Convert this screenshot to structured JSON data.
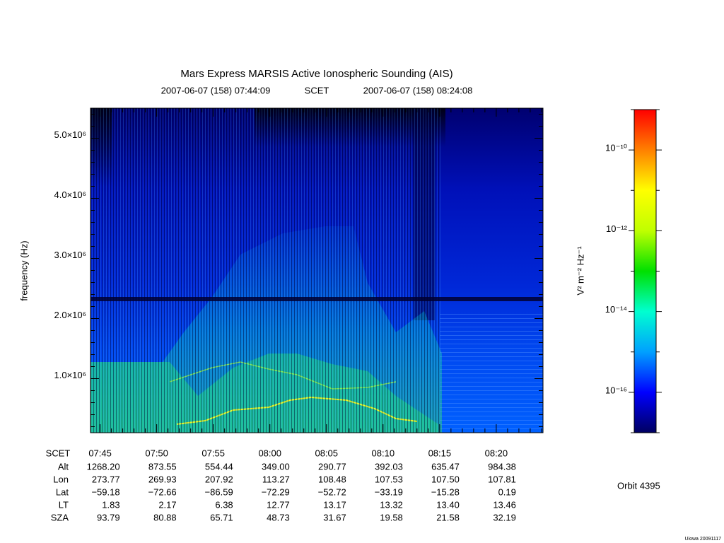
{
  "chart_data": {
    "type": "spectrogram",
    "title": "Mars Express MARSIS Active Ionospheric Sounding (AIS)",
    "start_time": "2007-06-07 (158) 07:44:09",
    "time_system": "SCET",
    "end_time": "2007-06-07 (158) 08:24:08",
    "ylabel": "frequency (Hz)",
    "ylim": [
      100000,
      5500000
    ],
    "yticks": [
      {
        "value": 1000000,
        "label": "1.0×10⁶"
      },
      {
        "value": 2000000,
        "label": "2.0×10⁶"
      },
      {
        "value": 3000000,
        "label": "3.0×10⁶"
      },
      {
        "value": 4000000,
        "label": "4.0×10⁶"
      },
      {
        "value": 5000000,
        "label": "5.0×10⁶"
      }
    ],
    "yminorticks": [
      200000,
      400000,
      600000,
      800000,
      1200000,
      1400000,
      1600000,
      1800000,
      2200000,
      2400000,
      2600000,
      2800000,
      3200000,
      3400000,
      3600000,
      3800000,
      4200000,
      4400000,
      4600000,
      4800000,
      5200000,
      5400000
    ],
    "xlim": [
      464.15,
      504.13
    ],
    "xticks": [
      {
        "value": 465,
        "label": "07:45"
      },
      {
        "value": 470,
        "label": "07:50"
      },
      {
        "value": 475,
        "label": "07:55"
      },
      {
        "value": 480,
        "label": "08:00"
      },
      {
        "value": 485,
        "label": "08:05"
      },
      {
        "value": 490,
        "label": "08:10"
      },
      {
        "value": 495,
        "label": "08:15"
      },
      {
        "value": 500,
        "label": "08:20"
      }
    ],
    "xminorticks": [
      466,
      467,
      468,
      469,
      471,
      472,
      473,
      474,
      476,
      477,
      478,
      479,
      481,
      482,
      483,
      484,
      486,
      487,
      488,
      489,
      491,
      492,
      493,
      494,
      496,
      497,
      498,
      499,
      501,
      502,
      503,
      504
    ],
    "ephemeris": {
      "time_label": "SCET",
      "rows": [
        {
          "label": "Alt",
          "values": [
            "1268.20",
            "873.55",
            "554.44",
            "349.00",
            "290.77",
            "392.03",
            "635.47",
            "984.38"
          ]
        },
        {
          "label": "Lon",
          "values": [
            "273.77",
            "269.93",
            "207.92",
            "113.27",
            "108.48",
            "107.53",
            "107.50",
            "107.81"
          ]
        },
        {
          "label": "Lat",
          "values": [
            "−59.18",
            "−72.66",
            "−86.59",
            "−72.29",
            "−52.72",
            "−33.19",
            "−15.28",
            "0.19"
          ]
        },
        {
          "label": "LT",
          "values": [
            "1.83",
            "2.17",
            "6.38",
            "12.77",
            "13.17",
            "13.32",
            "13.40",
            "13.46"
          ]
        },
        {
          "label": "SZA",
          "values": [
            "93.79",
            "80.88",
            "65.71",
            "48.73",
            "31.67",
            "19.58",
            "21.58",
            "32.19"
          ]
        }
      ]
    },
    "colorbar": {
      "label": "V² m⁻² Hz⁻¹",
      "log_scale": true,
      "zlim": [
        1e-17,
        1e-09
      ],
      "zticks": [
        {
          "value": 1e-16,
          "label": "10⁻¹⁶"
        },
        {
          "value": 1e-14,
          "label": "10⁻¹⁴"
        },
        {
          "value": 1e-12,
          "label": "10⁻¹²"
        },
        {
          "value": 1e-10,
          "label": "10⁻¹⁰"
        }
      ],
      "zminorticks": [
        1e-17,
        1e-15,
        1e-13,
        1e-11,
        1e-09
      ],
      "colors": [
        "#000060",
        "#0000ff",
        "#00a0ff",
        "#00ffd0",
        "#00e000",
        "#c0ff00",
        "#ffff00",
        "#ff8000",
        "#ff0000"
      ]
    },
    "orbit": "Orbit 4395",
    "footer": "Uiowa 20091117"
  }
}
